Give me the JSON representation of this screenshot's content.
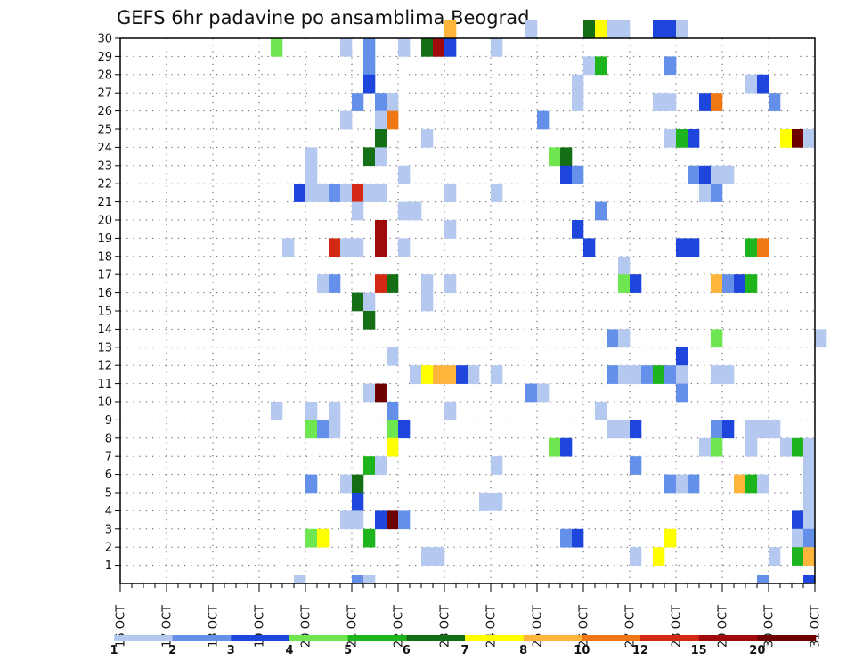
{
  "chart_data": {
    "type": "heatmap",
    "title": "GEFS 6hr padavine po ansamblima Beograd",
    "y_tick_labels": [
      "1",
      "2",
      "3",
      "4",
      "5",
      "6",
      "7",
      "8",
      "9",
      "10",
      "11",
      "12",
      "13",
      "14",
      "15",
      "16",
      "17",
      "18",
      "19",
      "20",
      "21",
      "22",
      "23",
      "24",
      "25",
      "26",
      "27",
      "28",
      "29",
      "30"
    ],
    "x_tick_labels": [
      "16 OCT",
      "17 OCT",
      "18 OCT",
      "19 OCT",
      "20 OCT",
      "21 OCT",
      "22 OCT",
      "23 OCT",
      "24 OCT",
      "25 OCT",
      "26 OCT",
      "27 OCT",
      "28 OCT",
      "29 OCT",
      "30 OCT",
      "31 OCT"
    ],
    "x_range": [
      "16 OCT 00Z",
      "31 OCT 00Z"
    ],
    "y_range": [
      0,
      30
    ],
    "time_step_hours": 6,
    "grid": "dotted",
    "colorbar": {
      "labels": [
        "1",
        "2",
        "3",
        "4",
        "5",
        "6",
        "7",
        "8",
        "10",
        "12",
        "15",
        "20"
      ],
      "colors": [
        "#b4c8f0",
        "#6490ea",
        "#1e46dc",
        "#6ee650",
        "#1eb41e",
        "#146e14",
        "#ffff00",
        "#ffb43c",
        "#f07814",
        "#d22814",
        "#a00a0a",
        "#6e0000"
      ]
    },
    "cell_colors": {
      "1": "#b4c8f0",
      "2": "#6490ea",
      "3": "#1e46dc",
      "4": "#6ee650",
      "5": "#1eb41e",
      "6": "#146e14",
      "7": "#ffff00",
      "8": "#ffb43c",
      "9": "#f07814",
      "10": "#d22814",
      "11": "#a00a0a",
      "12": "#6e0000"
    },
    "encoding": "Each cell is [time step index from 16 OCT 00Z in 6-hour steps, ensemble member, color class 1-12 (1 = lowest, 12 = highest bin)]",
    "cells": [
      [
        28,
        30,
        8
      ],
      [
        35,
        30,
        1
      ],
      [
        40,
        30,
        6
      ],
      [
        41,
        30,
        7
      ],
      [
        42,
        30,
        1
      ],
      [
        43,
        30,
        1
      ],
      [
        46,
        30,
        3
      ],
      [
        47,
        30,
        3
      ],
      [
        48,
        30,
        1
      ],
      [
        13,
        29,
        4
      ],
      [
        19,
        29,
        1
      ],
      [
        21,
        29,
        2
      ],
      [
        24,
        29,
        1
      ],
      [
        26,
        29,
        6
      ],
      [
        27,
        29,
        11
      ],
      [
        28,
        29,
        3
      ],
      [
        32,
        29,
        1
      ],
      [
        21,
        28,
        2
      ],
      [
        40,
        28,
        1
      ],
      [
        41,
        28,
        5
      ],
      [
        47,
        28,
        2
      ],
      [
        21,
        27,
        3
      ],
      [
        39,
        27,
        1
      ],
      [
        54,
        27,
        1
      ],
      [
        55,
        27,
        3
      ],
      [
        20,
        26,
        2
      ],
      [
        22,
        26,
        2
      ],
      [
        23,
        26,
        1
      ],
      [
        39,
        26,
        1
      ],
      [
        46,
        26,
        1
      ],
      [
        47,
        26,
        1
      ],
      [
        50,
        26,
        3
      ],
      [
        51,
        26,
        9
      ],
      [
        56,
        26,
        2
      ],
      [
        19,
        25,
        1
      ],
      [
        22,
        25,
        1
      ],
      [
        23,
        25,
        9
      ],
      [
        36,
        25,
        2
      ],
      [
        22,
        24,
        6
      ],
      [
        26,
        24,
        1
      ],
      [
        47,
        24,
        1
      ],
      [
        48,
        24,
        5
      ],
      [
        49,
        24,
        3
      ],
      [
        57,
        24,
        7
      ],
      [
        58,
        24,
        12
      ],
      [
        59,
        24,
        1
      ],
      [
        16,
        23,
        1
      ],
      [
        21,
        23,
        6
      ],
      [
        22,
        23,
        1
      ],
      [
        37,
        23,
        4
      ],
      [
        38,
        23,
        6
      ],
      [
        16,
        22,
        1
      ],
      [
        24,
        22,
        1
      ],
      [
        38,
        22,
        3
      ],
      [
        39,
        22,
        2
      ],
      [
        49,
        22,
        2
      ],
      [
        50,
        22,
        3
      ],
      [
        51,
        22,
        1
      ],
      [
        52,
        22,
        1
      ],
      [
        15,
        21,
        3
      ],
      [
        16,
        21,
        1
      ],
      [
        17,
        21,
        1
      ],
      [
        18,
        21,
        2
      ],
      [
        19,
        21,
        1
      ],
      [
        20,
        21,
        10
      ],
      [
        21,
        21,
        1
      ],
      [
        22,
        21,
        1
      ],
      [
        28,
        21,
        1
      ],
      [
        32,
        21,
        1
      ],
      [
        50,
        21,
        1
      ],
      [
        51,
        21,
        2
      ],
      [
        20,
        20,
        1
      ],
      [
        24,
        20,
        1
      ],
      [
        25,
        20,
        1
      ],
      [
        41,
        20,
        2
      ],
      [
        22,
        19,
        11
      ],
      [
        28,
        19,
        1
      ],
      [
        39,
        19,
        3
      ],
      [
        14,
        18,
        1
      ],
      [
        18,
        18,
        10
      ],
      [
        19,
        18,
        1
      ],
      [
        20,
        18,
        1
      ],
      [
        22,
        18,
        11
      ],
      [
        24,
        18,
        1
      ],
      [
        40,
        18,
        3
      ],
      [
        48,
        18,
        3
      ],
      [
        49,
        18,
        3
      ],
      [
        54,
        18,
        5
      ],
      [
        55,
        18,
        9
      ],
      [
        43,
        17,
        1
      ],
      [
        17,
        16,
        1
      ],
      [
        18,
        16,
        2
      ],
      [
        22,
        16,
        10
      ],
      [
        23,
        16,
        6
      ],
      [
        26,
        16,
        1
      ],
      [
        28,
        16,
        1
      ],
      [
        43,
        16,
        4
      ],
      [
        44,
        16,
        3
      ],
      [
        51,
        16,
        8
      ],
      [
        52,
        16,
        2
      ],
      [
        53,
        16,
        3
      ],
      [
        54,
        16,
        5
      ],
      [
        20,
        15,
        6
      ],
      [
        21,
        15,
        1
      ],
      [
        26,
        15,
        1
      ],
      [
        21,
        14,
        6
      ],
      [
        42,
        13,
        2
      ],
      [
        43,
        13,
        1
      ],
      [
        51,
        13,
        4
      ],
      [
        60,
        13,
        1
      ],
      [
        23,
        12,
        1
      ],
      [
        48,
        12,
        3
      ],
      [
        25,
        11,
        1
      ],
      [
        26,
        11,
        7
      ],
      [
        27,
        11,
        8
      ],
      [
        28,
        11,
        8
      ],
      [
        29,
        11,
        3
      ],
      [
        30,
        11,
        1
      ],
      [
        32,
        11,
        1
      ],
      [
        42,
        11,
        2
      ],
      [
        43,
        11,
        1
      ],
      [
        44,
        11,
        1
      ],
      [
        45,
        11,
        2
      ],
      [
        46,
        11,
        5
      ],
      [
        47,
        11,
        2
      ],
      [
        48,
        11,
        1
      ],
      [
        51,
        11,
        1
      ],
      [
        52,
        11,
        1
      ],
      [
        21,
        10,
        1
      ],
      [
        22,
        10,
        12
      ],
      [
        35,
        10,
        2
      ],
      [
        36,
        10,
        1
      ],
      [
        48,
        10,
        2
      ],
      [
        13,
        9,
        1
      ],
      [
        16,
        9,
        1
      ],
      [
        18,
        9,
        1
      ],
      [
        23,
        9,
        2
      ],
      [
        28,
        9,
        1
      ],
      [
        41,
        9,
        1
      ],
      [
        16,
        8,
        4
      ],
      [
        17,
        8,
        2
      ],
      [
        18,
        8,
        1
      ],
      [
        23,
        8,
        4
      ],
      [
        24,
        8,
        3
      ],
      [
        42,
        8,
        1
      ],
      [
        43,
        8,
        1
      ],
      [
        44,
        8,
        3
      ],
      [
        51,
        8,
        2
      ],
      [
        52,
        8,
        3
      ],
      [
        54,
        8,
        1
      ],
      [
        55,
        8,
        1
      ],
      [
        56,
        8,
        1
      ],
      [
        23,
        7,
        7
      ],
      [
        37,
        7,
        4
      ],
      [
        38,
        7,
        3
      ],
      [
        50,
        7,
        1
      ],
      [
        51,
        7,
        4
      ],
      [
        54,
        7,
        1
      ],
      [
        57,
        7,
        1
      ],
      [
        58,
        7,
        5
      ],
      [
        59,
        7,
        1
      ],
      [
        21,
        6,
        5
      ],
      [
        22,
        6,
        1
      ],
      [
        32,
        6,
        1
      ],
      [
        44,
        6,
        2
      ],
      [
        59,
        6,
        1
      ],
      [
        16,
        5,
        2
      ],
      [
        19,
        5,
        1
      ],
      [
        20,
        5,
        6
      ],
      [
        47,
        5,
        2
      ],
      [
        48,
        5,
        1
      ],
      [
        49,
        5,
        2
      ],
      [
        53,
        5,
        8
      ],
      [
        54,
        5,
        5
      ],
      [
        55,
        5,
        1
      ],
      [
        59,
        5,
        1
      ],
      [
        20,
        4,
        3
      ],
      [
        31,
        4,
        1
      ],
      [
        32,
        4,
        1
      ],
      [
        59,
        4,
        1
      ],
      [
        19,
        3,
        1
      ],
      [
        20,
        3,
        1
      ],
      [
        22,
        3,
        3
      ],
      [
        23,
        3,
        12
      ],
      [
        24,
        3,
        2
      ],
      [
        58,
        3,
        3
      ],
      [
        59,
        3,
        1
      ],
      [
        16,
        2,
        4
      ],
      [
        17,
        2,
        7
      ],
      [
        21,
        2,
        5
      ],
      [
        38,
        2,
        2
      ],
      [
        39,
        2,
        3
      ],
      [
        47,
        2,
        7
      ],
      [
        58,
        2,
        1
      ],
      [
        59,
        2,
        2
      ],
      [
        26,
        1,
        1
      ],
      [
        27,
        1,
        1
      ],
      [
        44,
        1,
        1
      ],
      [
        46,
        1,
        7
      ],
      [
        56,
        1,
        1
      ],
      [
        58,
        1,
        5
      ],
      [
        59,
        1,
        8
      ],
      [
        15,
        0,
        1
      ],
      [
        20,
        0,
        2
      ],
      [
        21,
        0,
        1
      ],
      [
        55,
        0,
        2
      ],
      [
        59,
        0,
        3
      ]
    ]
  }
}
